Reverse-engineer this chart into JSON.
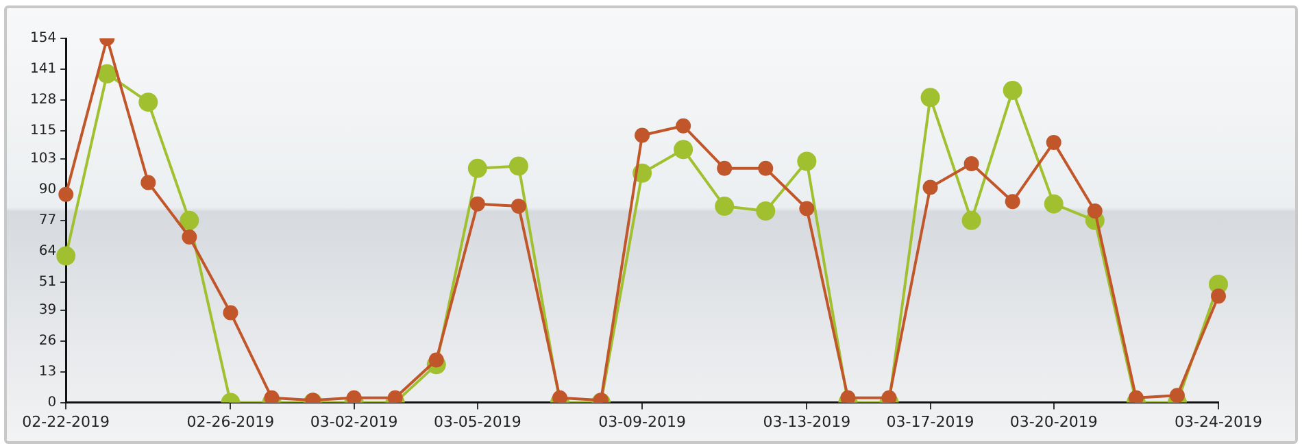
{
  "chart_data": {
    "type": "line",
    "categories": [
      "02-22-2019",
      null,
      null,
      null,
      "02-26-2019",
      null,
      null,
      "03-02-2019",
      null,
      null,
      "03-05-2019",
      null,
      null,
      null,
      "03-09-2019",
      null,
      null,
      null,
      "03-13-2019",
      null,
      null,
      "03-17-2019",
      null,
      null,
      "03-20-2019",
      null,
      null,
      null,
      "03-24-2019"
    ],
    "series": [
      {
        "color": "#a0c030",
        "values": [
          62,
          139,
          127,
          77,
          0,
          0,
          0,
          0,
          0,
          16,
          99,
          100,
          0,
          0,
          97,
          107,
          83,
          81,
          102,
          0,
          0,
          129,
          77,
          132,
          84,
          77,
          0,
          0,
          50
        ]
      },
      {
        "color": "#c0562a",
        "values": [
          88,
          154,
          93,
          70,
          38,
          2,
          1,
          2,
          2,
          18,
          84,
          83,
          2,
          1,
          113,
          117,
          99,
          99,
          82,
          2,
          2,
          91,
          101,
          85,
          110,
          81,
          2,
          3,
          45
        ]
      }
    ],
    "ylim": [
      0,
      154
    ],
    "yticks": [
      0,
      13,
      26,
      39,
      51,
      64,
      77,
      90,
      103,
      115,
      128,
      141,
      154
    ],
    "grid": false,
    "legend": false,
    "marker": "circle",
    "line_style": "solid"
  }
}
